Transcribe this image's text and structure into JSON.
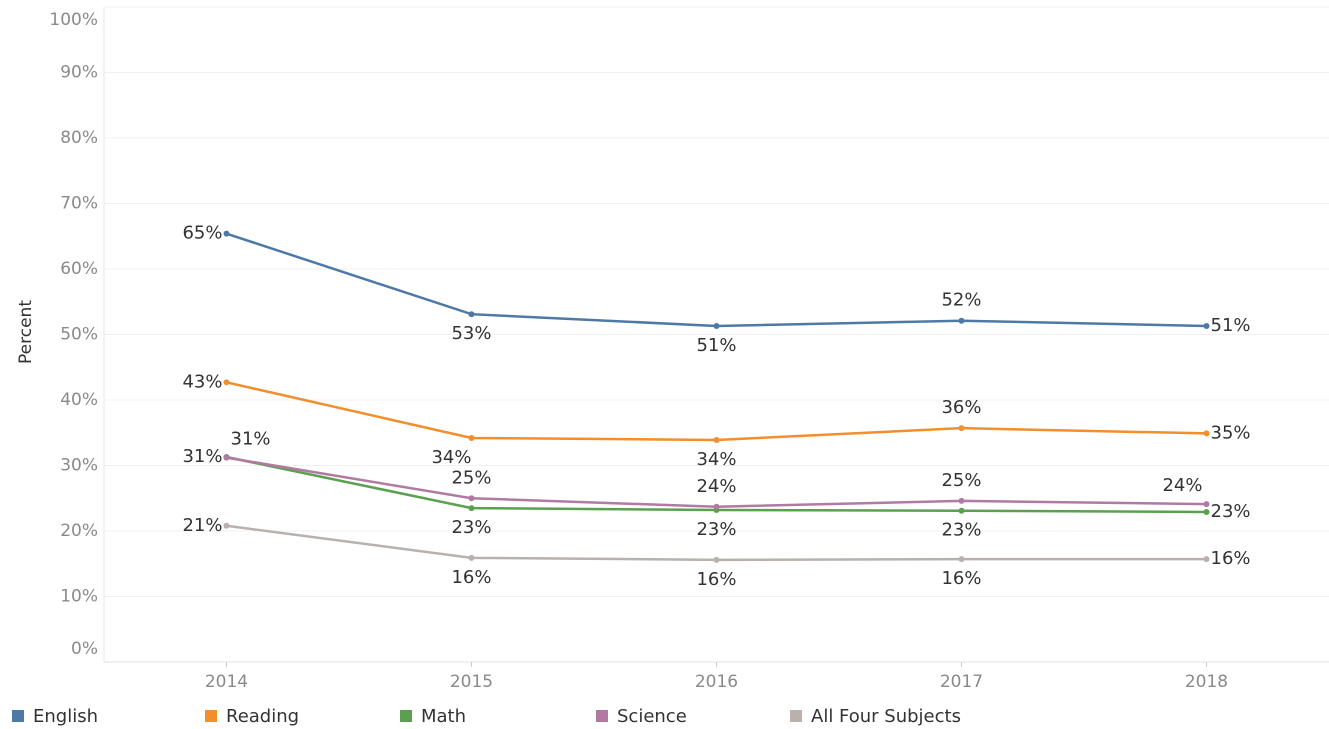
{
  "chart_data": {
    "type": "line",
    "y_label": "Percent",
    "categories": [
      "2014",
      "2015",
      "2016",
      "2017",
      "2018"
    ],
    "ylim": [
      0,
      100
    ],
    "yticks": [
      {
        "value": 0,
        "label": "0%"
      },
      {
        "value": 10,
        "label": "10%"
      },
      {
        "value": 20,
        "label": "20%"
      },
      {
        "value": 30,
        "label": "30%"
      },
      {
        "value": 40,
        "label": "40%"
      },
      {
        "value": 50,
        "label": "50%"
      },
      {
        "value": 60,
        "label": "60%"
      },
      {
        "value": 70,
        "label": "70%"
      },
      {
        "value": 80,
        "label": "80%"
      },
      {
        "value": 90,
        "label": "90%"
      },
      {
        "value": 100,
        "label": "100%"
      }
    ],
    "grid": true,
    "legend": "bottom",
    "series": [
      {
        "name": "English",
        "color": "#4e79a7",
        "values": [
          65.4,
          53.1,
          51.3,
          52.1,
          51.3
        ],
        "value_labels": [
          "65%",
          "53%",
          "51%",
          "52%",
          "51%"
        ]
      },
      {
        "name": "Reading",
        "color": "#f28e2b",
        "values": [
          42.7,
          34.2,
          33.9,
          35.7,
          34.9
        ],
        "value_labels": [
          "43%",
          "34%",
          "34%",
          "36%",
          "35%"
        ]
      },
      {
        "name": "Math",
        "color": "#59a14f",
        "values": [
          31.3,
          23.5,
          23.2,
          23.1,
          22.9
        ],
        "value_labels": [
          "31%",
          "23%",
          "23%",
          "23%",
          "23%"
        ]
      },
      {
        "name": "Science",
        "color": "#b07aa1",
        "values": [
          31.2,
          25.0,
          23.7,
          24.6,
          24.1
        ],
        "value_labels": [
          "31%",
          "25%",
          "24%",
          "25%",
          "24%"
        ]
      },
      {
        "name": "All Four Subjects",
        "color": "#bab0ac",
        "values": [
          20.8,
          15.9,
          15.6,
          15.7,
          15.7
        ],
        "value_labels": [
          "21%",
          "16%",
          "16%",
          "16%",
          "16%"
        ]
      }
    ]
  }
}
